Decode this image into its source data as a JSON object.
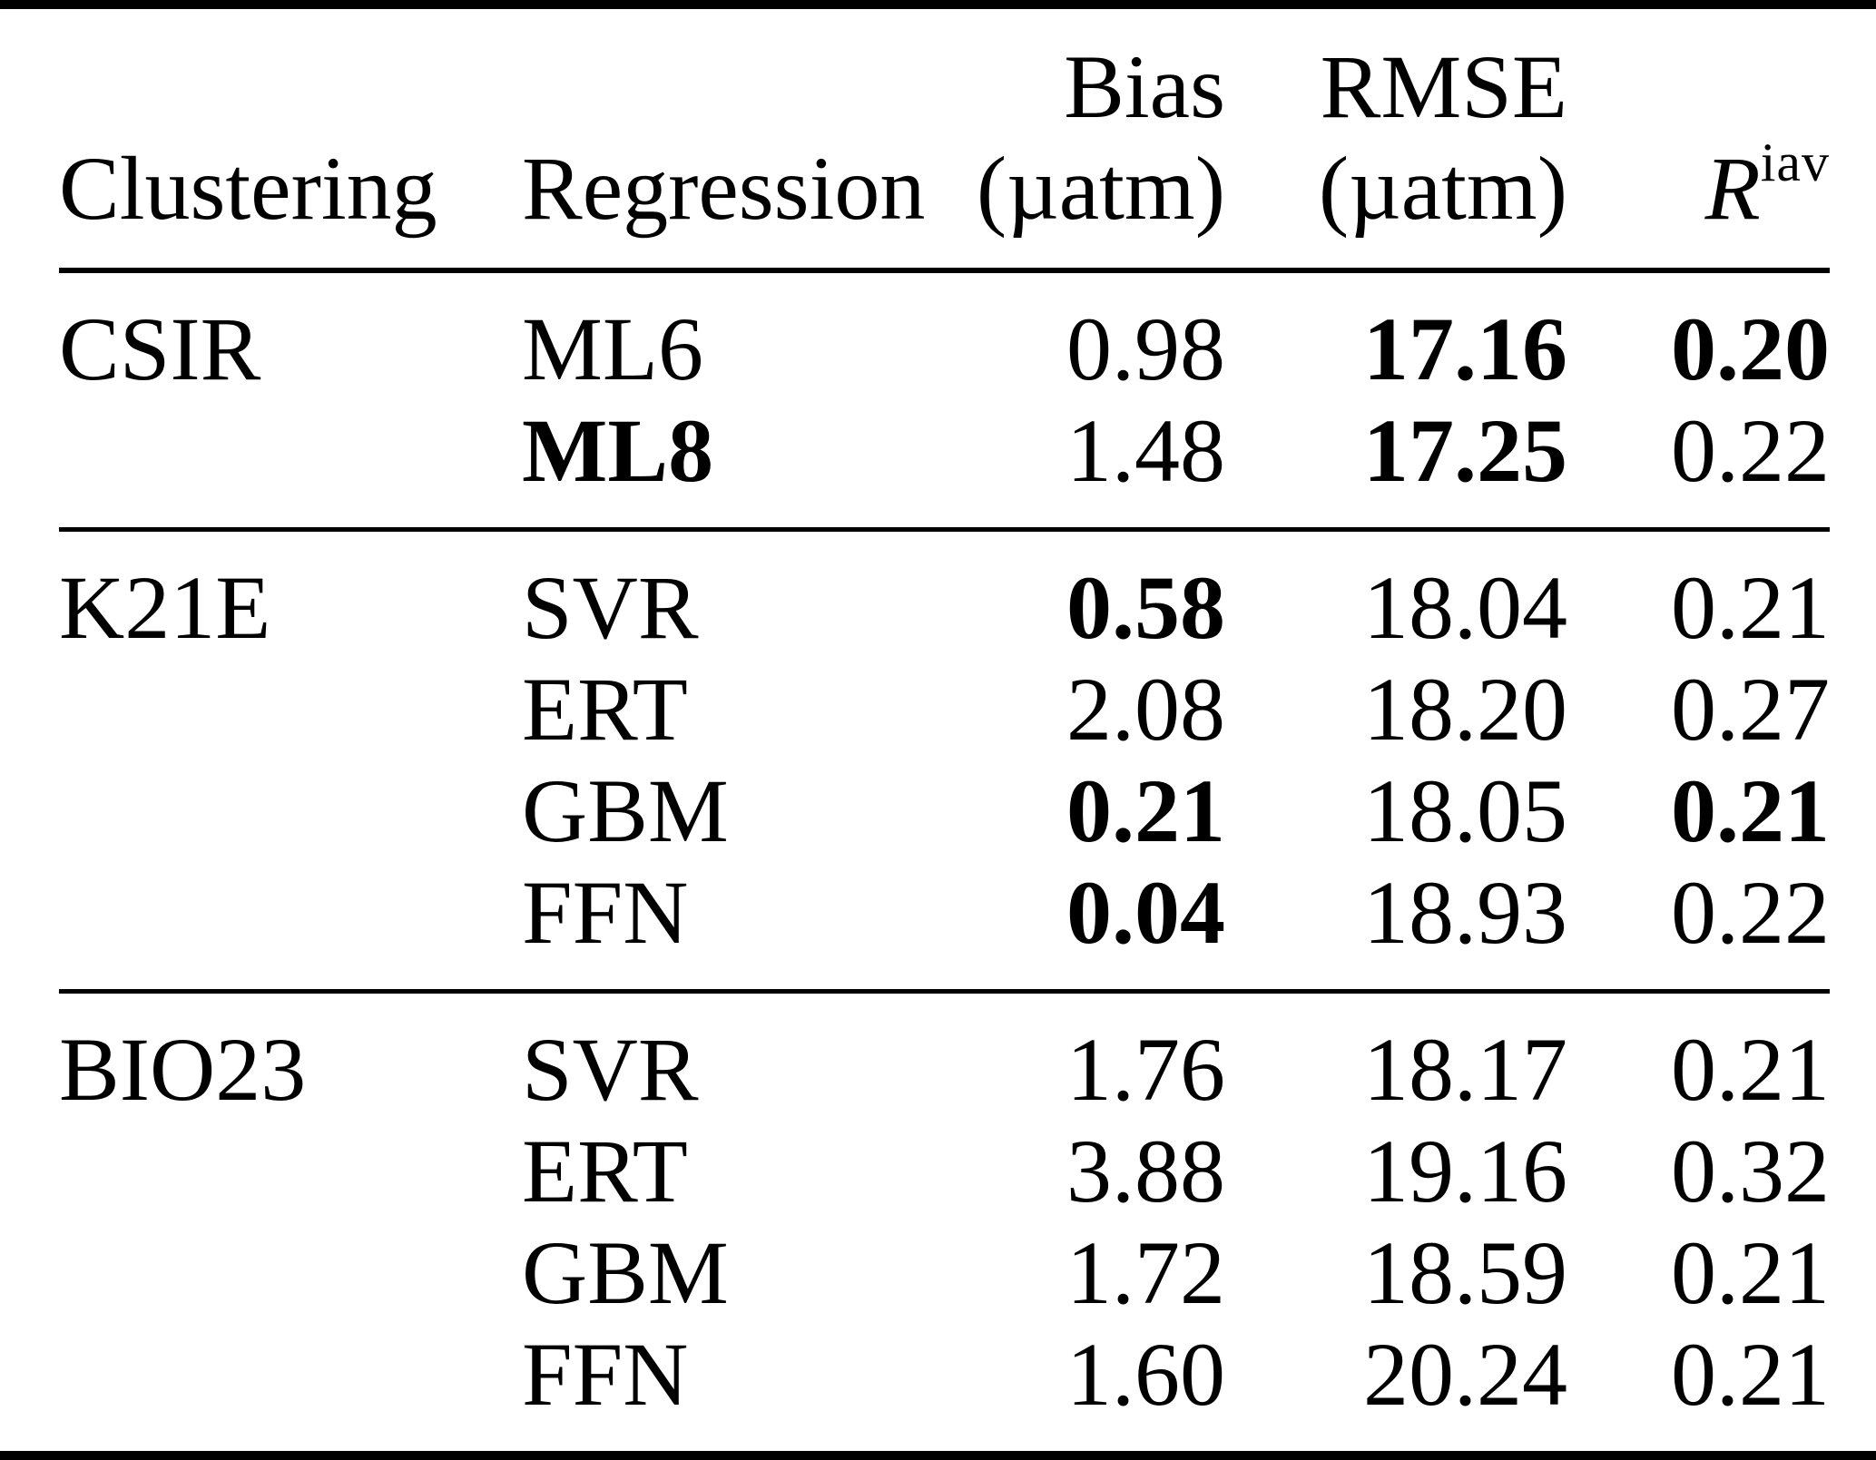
{
  "header": {
    "clustering_label": "Clustering",
    "regression_label": "Regression",
    "bias_label": "Bias",
    "bias_unit": "(µatm)",
    "rmse_label": "RMSE",
    "rmse_unit": "(µatm)",
    "riav_base": "R",
    "riav_sup": "iav"
  },
  "groups": [
    {
      "clustering": "CSIR",
      "rows": [
        {
          "regression": {
            "text": "ML6",
            "bold": false
          },
          "bias": {
            "text": "0.98",
            "bold": false
          },
          "rmse": {
            "text": "17.16",
            "bold": true
          },
          "riav": {
            "text": "0.20",
            "bold": true
          }
        },
        {
          "regression": {
            "text": "ML8",
            "bold": true
          },
          "bias": {
            "text": "1.48",
            "bold": false
          },
          "rmse": {
            "text": "17.25",
            "bold": true
          },
          "riav": {
            "text": "0.22",
            "bold": false
          }
        }
      ]
    },
    {
      "clustering": "K21E",
      "rows": [
        {
          "regression": {
            "text": "SVR",
            "bold": false
          },
          "bias": {
            "text": "0.58",
            "bold": true
          },
          "rmse": {
            "text": "18.04",
            "bold": false
          },
          "riav": {
            "text": "0.21",
            "bold": false
          }
        },
        {
          "regression": {
            "text": "ERT",
            "bold": false
          },
          "bias": {
            "text": "2.08",
            "bold": false
          },
          "rmse": {
            "text": "18.20",
            "bold": false
          },
          "riav": {
            "text": "0.27",
            "bold": false
          }
        },
        {
          "regression": {
            "text": "GBM",
            "bold": false
          },
          "bias": {
            "text": "0.21",
            "bold": true
          },
          "rmse": {
            "text": "18.05",
            "bold": false
          },
          "riav": {
            "text": "0.21",
            "bold": true
          }
        },
        {
          "regression": {
            "text": "FFN",
            "bold": false
          },
          "bias": {
            "text": "0.04",
            "bold": true
          },
          "rmse": {
            "text": "18.93",
            "bold": false
          },
          "riav": {
            "text": "0.22",
            "bold": false
          }
        }
      ]
    },
    {
      "clustering": "BIO23",
      "rows": [
        {
          "regression": {
            "text": "SVR",
            "bold": false
          },
          "bias": {
            "text": "1.76",
            "bold": false
          },
          "rmse": {
            "text": "18.17",
            "bold": false
          },
          "riav": {
            "text": "0.21",
            "bold": false
          }
        },
        {
          "regression": {
            "text": "ERT",
            "bold": false
          },
          "bias": {
            "text": "3.88",
            "bold": false
          },
          "rmse": {
            "text": "19.16",
            "bold": false
          },
          "riav": {
            "text": "0.32",
            "bold": false
          }
        },
        {
          "regression": {
            "text": "GBM",
            "bold": false
          },
          "bias": {
            "text": "1.72",
            "bold": false
          },
          "rmse": {
            "text": "18.59",
            "bold": false
          },
          "riav": {
            "text": "0.21",
            "bold": false
          }
        },
        {
          "regression": {
            "text": "FFN",
            "bold": false
          },
          "bias": {
            "text": "1.60",
            "bold": false
          },
          "rmse": {
            "text": "20.24",
            "bold": false
          },
          "riav": {
            "text": "0.21",
            "bold": false
          }
        }
      ]
    }
  ]
}
